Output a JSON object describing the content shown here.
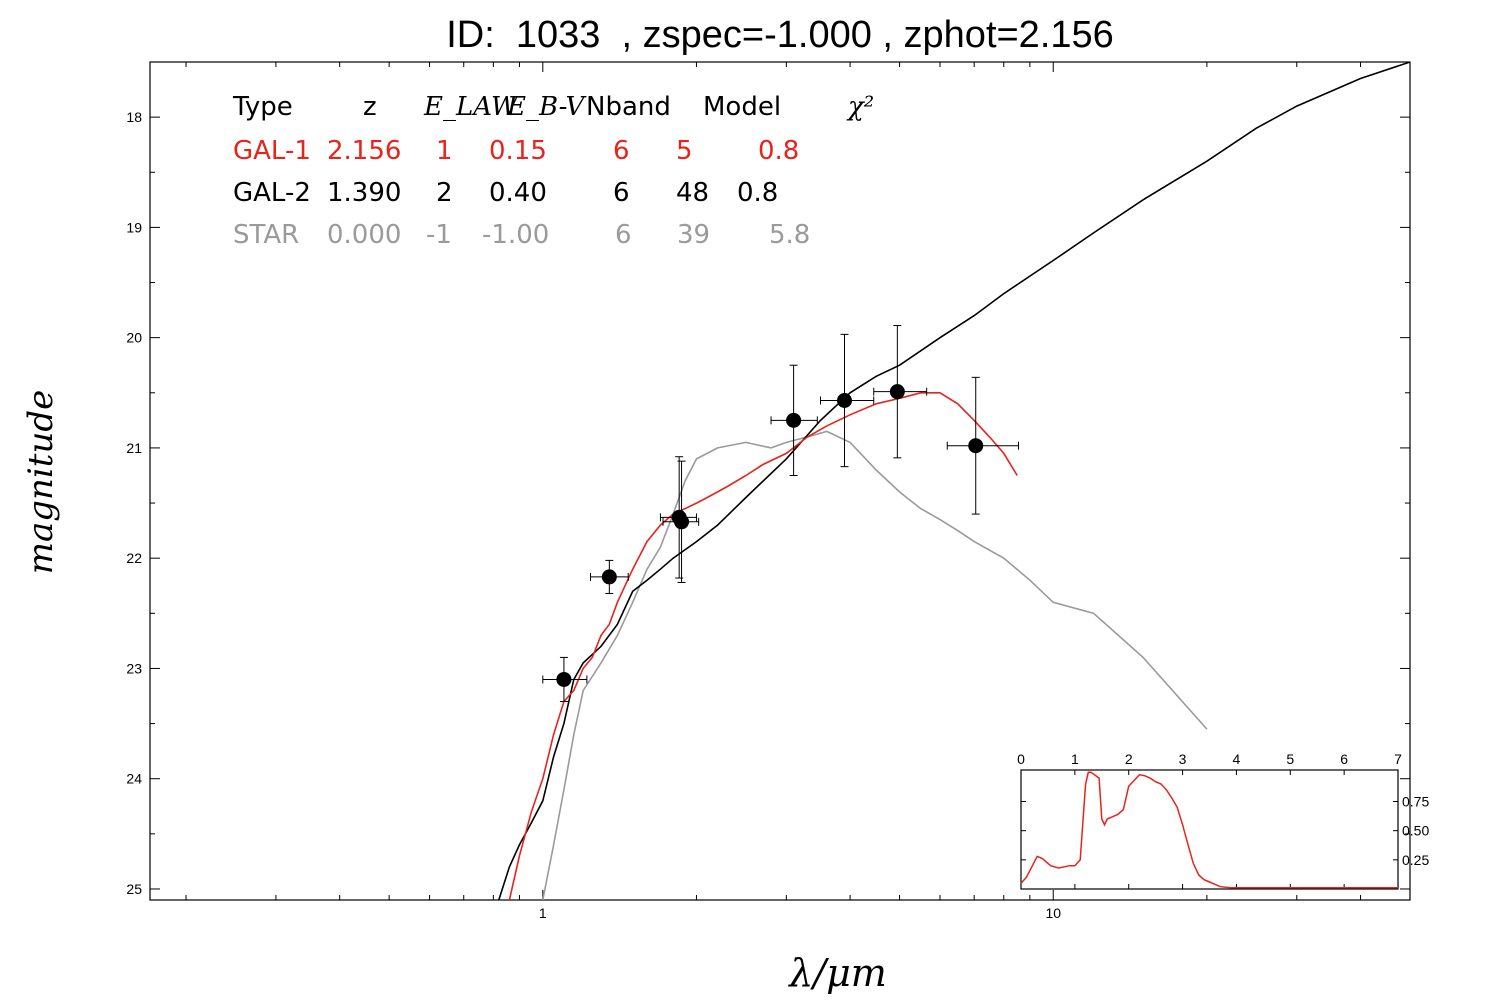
{
  "title": "ID:  1033  , zspec=-1.000 , zphot=2.156",
  "legend_table": {
    "headers": [
      "Type",
      "z",
      "E_LAW",
      "E_B-V",
      "Nband",
      "Model",
      "χ²"
    ],
    "rows": [
      {
        "color": "#e8231b",
        "cells": [
          "GAL-1",
          "2.156",
          "1",
          "0.15",
          "6",
          "5",
          "0.8"
        ]
      },
      {
        "color": "#000000",
        "cells": [
          "GAL-2",
          "1.390",
          "2",
          "0.40",
          "6",
          "48",
          "0.8"
        ]
      },
      {
        "color": "#9a9a9a",
        "cells": [
          "STAR",
          "0.000",
          "-1",
          "-1.00",
          "6",
          "39",
          "5.8"
        ]
      }
    ]
  },
  "chart_data": [
    {
      "type": "line",
      "xlabel": "λ/μm",
      "ylabel": "magnitude",
      "xscale": "log",
      "xlim": [
        0.17,
        50
      ],
      "ylim": [
        25.1,
        17.5
      ],
      "y_inverted": true,
      "xticks": [
        1,
        10
      ],
      "xtick_labels": [
        "1",
        "10"
      ],
      "yticks": [
        18,
        19,
        20,
        21,
        22,
        23,
        24,
        25
      ],
      "ytick_labels": [
        "18",
        "19",
        "20",
        "21",
        "22",
        "23",
        "24",
        "25"
      ],
      "series": [
        {
          "name": "GAL-1",
          "color": "#e8231b",
          "x": [
            0.86,
            0.9,
            0.95,
            1.0,
            1.05,
            1.1,
            1.15,
            1.2,
            1.25,
            1.3,
            1.35,
            1.4,
            1.5,
            1.6,
            1.7,
            1.8,
            1.9,
            2.0,
            2.1,
            2.3,
            2.5,
            2.7,
            3.0,
            3.3,
            3.6,
            4.0,
            4.5,
            5.0,
            5.5,
            6.0,
            6.5,
            7.0,
            7.5,
            8.0,
            8.5
          ],
          "y": [
            25.1,
            24.7,
            24.3,
            24.0,
            23.6,
            23.3,
            23.2,
            23.0,
            22.9,
            22.7,
            22.6,
            22.4,
            22.1,
            21.85,
            21.7,
            21.6,
            21.55,
            21.5,
            21.45,
            21.35,
            21.25,
            21.15,
            21.05,
            20.9,
            20.8,
            20.7,
            20.6,
            20.55,
            20.5,
            20.5,
            20.6,
            20.75,
            20.9,
            21.05,
            21.25
          ]
        },
        {
          "name": "GAL-2",
          "color": "#000000",
          "x": [
            0.82,
            0.86,
            0.9,
            0.95,
            1.0,
            1.05,
            1.1,
            1.15,
            1.2,
            1.3,
            1.4,
            1.5,
            1.6,
            1.7,
            1.8,
            2.0,
            2.2,
            2.5,
            3.0,
            3.5,
            4.0,
            4.5,
            5.0,
            6.0,
            7.0,
            8.0,
            10.0,
            12.0,
            15.0,
            20.0,
            25.0,
            30.0,
            40.0,
            50.0
          ],
          "y": [
            25.1,
            24.8,
            24.6,
            24.4,
            24.2,
            23.8,
            23.5,
            23.1,
            22.95,
            22.8,
            22.6,
            22.3,
            22.2,
            22.1,
            22.0,
            21.85,
            21.7,
            21.45,
            21.1,
            20.75,
            20.5,
            20.35,
            20.25,
            20.0,
            19.8,
            19.6,
            19.3,
            19.05,
            18.75,
            18.4,
            18.1,
            17.9,
            17.65,
            17.5
          ]
        },
        {
          "name": "STAR",
          "color": "#9a9a9a",
          "x": [
            1.0,
            1.05,
            1.1,
            1.15,
            1.2,
            1.3,
            1.4,
            1.5,
            1.6,
            1.7,
            1.8,
            1.9,
            2.0,
            2.2,
            2.5,
            2.8,
            3.0,
            3.3,
            3.6,
            4.0,
            4.5,
            5.0,
            5.5,
            6.0,
            6.5,
            7.0,
            8.0,
            9.0,
            10.0,
            12.0,
            15.0,
            20.0
          ],
          "y": [
            25.1,
            24.6,
            24.1,
            23.6,
            23.2,
            22.95,
            22.7,
            22.4,
            22.1,
            21.9,
            21.6,
            21.3,
            21.1,
            21.0,
            20.95,
            21.0,
            20.95,
            20.9,
            20.85,
            20.95,
            21.2,
            21.4,
            21.55,
            21.65,
            21.75,
            21.85,
            22.0,
            22.2,
            22.4,
            22.5,
            22.9,
            23.55
          ]
        }
      ],
      "photometry": {
        "x": [
          1.1,
          1.35,
          1.85,
          1.87,
          3.1,
          3.9,
          4.95,
          7.05
        ],
        "y": [
          23.1,
          22.17,
          21.63,
          21.67,
          20.75,
          20.57,
          20.49,
          20.98
        ],
        "y_err": [
          0.2,
          0.15,
          0.55,
          0.55,
          0.5,
          0.6,
          0.6,
          0.62
        ],
        "x_err_lo": [
          0.1,
          0.11,
          0.15,
          0.15,
          0.3,
          0.4,
          0.5,
          0.85
        ],
        "x_err_hi": [
          0.12,
          0.12,
          0.15,
          0.15,
          0.35,
          0.55,
          0.7,
          1.5
        ],
        "color": "#000000"
      }
    },
    {
      "type": "line",
      "role": "inset",
      "xlim": [
        0,
        7
      ],
      "ylim": [
        0,
        1.02
      ],
      "xticks": [
        0,
        1,
        2,
        3,
        4,
        5,
        6,
        7
      ],
      "xtick_labels": [
        "0",
        "1",
        "2",
        "3",
        "4",
        "5",
        "6",
        "7"
      ],
      "yticks": [
        0.25,
        0.5,
        0.75
      ],
      "ytick_labels": [
        "0.25",
        "0.50",
        "0.75"
      ],
      "series": [
        {
          "color": "#e8231b",
          "x": [
            0,
            0.1,
            0.3,
            0.4,
            0.55,
            0.7,
            0.9,
            1.0,
            1.1,
            1.2,
            1.25,
            1.3,
            1.45,
            1.5,
            1.55,
            1.6,
            1.7,
            1.8,
            1.9,
            2.0,
            2.1,
            2.2,
            2.3,
            2.4,
            2.5,
            2.6,
            2.7,
            2.8,
            2.9,
            3.0,
            3.1,
            3.2,
            3.3,
            3.4,
            3.5,
            3.6,
            3.7,
            3.9,
            4.5,
            5.0,
            6.0,
            7.0
          ],
          "y": [
            0.05,
            0.1,
            0.28,
            0.26,
            0.2,
            0.18,
            0.2,
            0.2,
            0.25,
            0.9,
            1.0,
            1.0,
            0.95,
            0.6,
            0.55,
            0.6,
            0.62,
            0.64,
            0.68,
            0.88,
            0.93,
            0.98,
            0.97,
            0.95,
            0.92,
            0.9,
            0.85,
            0.78,
            0.7,
            0.55,
            0.38,
            0.22,
            0.12,
            0.08,
            0.06,
            0.04,
            0.02,
            0.01,
            0.01,
            0.01,
            0.01,
            0.01
          ]
        }
      ]
    }
  ]
}
